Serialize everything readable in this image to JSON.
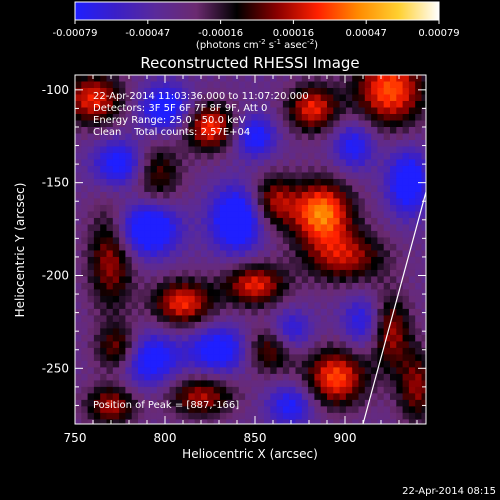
{
  "chart_data": {
    "type": "heatmap",
    "title": "Reconstructed RHESSI Image",
    "xlabel": "Heliocentric X (arcsec)",
    "ylabel": "Heliocentric Y (arcsec)",
    "xlim": [
      750,
      945
    ],
    "ylim": [
      -280,
      -92
    ],
    "x_ticks": [
      750,
      800,
      850,
      900
    ],
    "y_ticks": [
      -100,
      -150,
      -200,
      -250
    ],
    "colorbar": {
      "min": -0.00079,
      "max": 0.00079,
      "ticks": [
        "-0.00079",
        "-0.00047",
        "-0.00016",
        "0.00016",
        "0.00047",
        "0.00079"
      ],
      "label_main": "(photons cm",
      "label_exp1": "-2",
      "label_mid": " s",
      "label_exp2": "-1",
      "label_mid2": " asec",
      "label_exp3": "-2",
      "label_end": ")",
      "colors": [
        "#1f1fff",
        "#3a1fc8",
        "#5a2a9a",
        "#6b2a70",
        "#000000",
        "#8a0000",
        "#ff2000",
        "#ff8a00",
        "#ffd030",
        "#ffffff"
      ]
    },
    "annotations": {
      "time_range": "22-Apr-2014 11:03:36.000 to 11:07:20.000",
      "detectors": "Detectors: 3F 5F 6F 7F 8F 9F, Att 0",
      "energy_range": "Energy Range: 25.0 - 50.0 keV",
      "clean_counts": "Clean    Total counts: 2.57E+04",
      "peak": "Position of Peak = [887,-166]"
    },
    "limb_line": [
      [
        910,
        -280
      ],
      [
        945,
        -155
      ]
    ],
    "intensity_sources": [
      {
        "x": 887,
        "y": -166,
        "amp": 0.00079,
        "sx": 12,
        "sy": 12
      },
      {
        "x": 925,
        "y": -100,
        "amp": 0.0007,
        "sx": 14,
        "sy": 14
      },
      {
        "x": 825,
        "y": -120,
        "amp": 0.00065,
        "sx": 10,
        "sy": 9
      },
      {
        "x": 882,
        "y": -110,
        "amp": 0.0006,
        "sx": 10,
        "sy": 9
      },
      {
        "x": 810,
        "y": -215,
        "amp": 0.00062,
        "sx": 12,
        "sy": 9
      },
      {
        "x": 850,
        "y": -205,
        "amp": 0.0006,
        "sx": 12,
        "sy": 8
      },
      {
        "x": 900,
        "y": -190,
        "amp": 0.0005,
        "sx": 16,
        "sy": 10
      },
      {
        "x": 895,
        "y": -255,
        "amp": 0.00068,
        "sx": 12,
        "sy": 11
      },
      {
        "x": 925,
        "y": -230,
        "amp": 0.0005,
        "sx": 8,
        "sy": 14
      },
      {
        "x": 760,
        "y": -105,
        "amp": 0.0006,
        "sx": 12,
        "sy": 10
      },
      {
        "x": 770,
        "y": -190,
        "amp": 0.0005,
        "sx": 9,
        "sy": 20
      },
      {
        "x": 775,
        "y": -240,
        "amp": 0.00055,
        "sx": 9,
        "sy": 9
      },
      {
        "x": 770,
        "y": -270,
        "amp": 0.0005,
        "sx": 10,
        "sy": 8
      },
      {
        "x": 820,
        "y": -265,
        "amp": 0.0005,
        "sx": 13,
        "sy": 8
      },
      {
        "x": 860,
        "y": -160,
        "amp": 0.00048,
        "sx": 9,
        "sy": 10
      },
      {
        "x": 858,
        "y": -240,
        "amp": 0.00045,
        "sx": 10,
        "sy": 9
      },
      {
        "x": 795,
        "y": -145,
        "amp": 0.0004,
        "sx": 10,
        "sy": 12
      },
      {
        "x": 940,
        "y": -260,
        "amp": 0.00045,
        "sx": 8,
        "sy": 14
      },
      {
        "x": 790,
        "y": -175,
        "amp": -0.0007,
        "sx": 12,
        "sy": 10
      },
      {
        "x": 775,
        "y": -140,
        "amp": -0.00055,
        "sx": 10,
        "sy": 9
      },
      {
        "x": 840,
        "y": -170,
        "amp": -0.0007,
        "sx": 10,
        "sy": 12
      },
      {
        "x": 800,
        "y": -110,
        "amp": -0.00055,
        "sx": 10,
        "sy": 9
      },
      {
        "x": 850,
        "y": -125,
        "amp": -0.0005,
        "sx": 8,
        "sy": 8
      },
      {
        "x": 790,
        "y": -245,
        "amp": -0.0006,
        "sx": 12,
        "sy": 10
      },
      {
        "x": 830,
        "y": -240,
        "amp": -0.00055,
        "sx": 12,
        "sy": 9
      },
      {
        "x": 870,
        "y": -230,
        "amp": -0.0004,
        "sx": 8,
        "sy": 8
      },
      {
        "x": 935,
        "y": -150,
        "amp": -0.0006,
        "sx": 8,
        "sy": 12
      },
      {
        "x": 910,
        "y": -225,
        "amp": -0.0004,
        "sx": 8,
        "sy": 10
      },
      {
        "x": 870,
        "y": -270,
        "amp": -0.00045,
        "sx": 9,
        "sy": 8
      },
      {
        "x": 905,
        "y": -130,
        "amp": -0.00045,
        "sx": 8,
        "sy": 9
      }
    ]
  },
  "footer": {
    "timestamp": "22-Apr-2014 08:15"
  }
}
